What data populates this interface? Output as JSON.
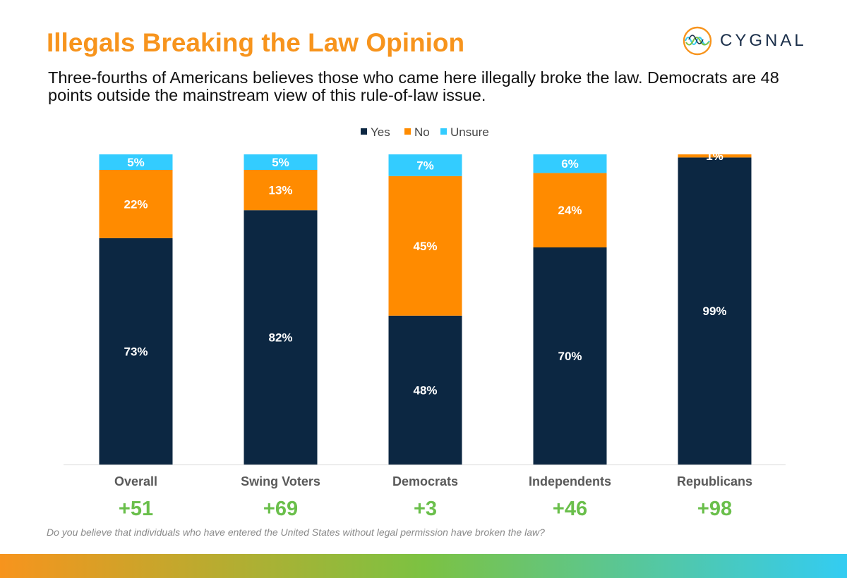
{
  "header": {
    "title": "Illegals Breaking the Law Opinion",
    "subtitle": "Three-fourths of Americans believes those who came here illegally broke the law. Democrats are 48 points outside the mainstream view of this rule-of-law issue."
  },
  "logo": {
    "text": "CYGNAL"
  },
  "footer": {
    "question": "Do you believe that individuals who have entered the United States without legal permission have broken the law?"
  },
  "colors": {
    "title": "#F7941D",
    "yes": "#0C2742",
    "no": "#FF8B00",
    "unsure": "#33CCFF",
    "net": "#6ABF4B"
  },
  "chart_data": {
    "type": "bar",
    "stacked": true,
    "categories": [
      "Overall",
      "Swing Voters",
      "Democrats",
      "Independents",
      "Republicans"
    ],
    "series": [
      {
        "name": "Yes",
        "values": [
          73,
          82,
          48,
          70,
          99
        ],
        "labels": [
          "73%",
          "82%",
          "48%",
          "70%",
          "99%"
        ]
      },
      {
        "name": "No",
        "values": [
          22,
          13,
          45,
          24,
          1
        ],
        "labels": [
          "22%",
          "13%",
          "45%",
          "24%",
          "1%"
        ]
      },
      {
        "name": "Unsure",
        "values": [
          5,
          5,
          7,
          6,
          0
        ],
        "labels": [
          "5%",
          "5%",
          "7%",
          "6%",
          ""
        ]
      }
    ],
    "net": [
      "+51",
      "+69",
      "+3",
      "+46",
      "+98"
    ],
    "ylim": [
      0,
      100
    ],
    "legend": "top-center",
    "grid": false,
    "title": "",
    "xlabel": "",
    "ylabel": ""
  }
}
